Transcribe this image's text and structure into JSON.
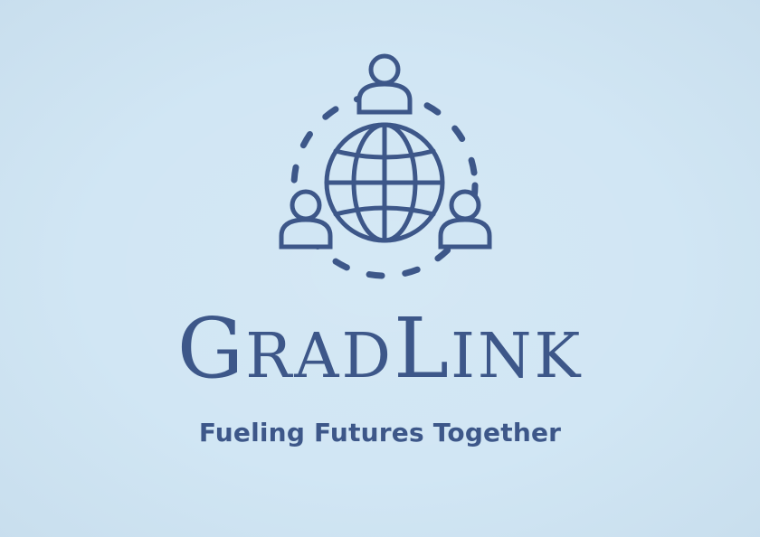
{
  "logo": {
    "wordmark_g": "G",
    "wordmark_rad": "RAD",
    "wordmark_l": "L",
    "wordmark_ink": "INK",
    "tagline": "Fueling Futures Together",
    "emblem_icon": "globe-with-people-icon"
  },
  "colors": {
    "background": "#d1e6f4",
    "brand": "#3d5789"
  }
}
